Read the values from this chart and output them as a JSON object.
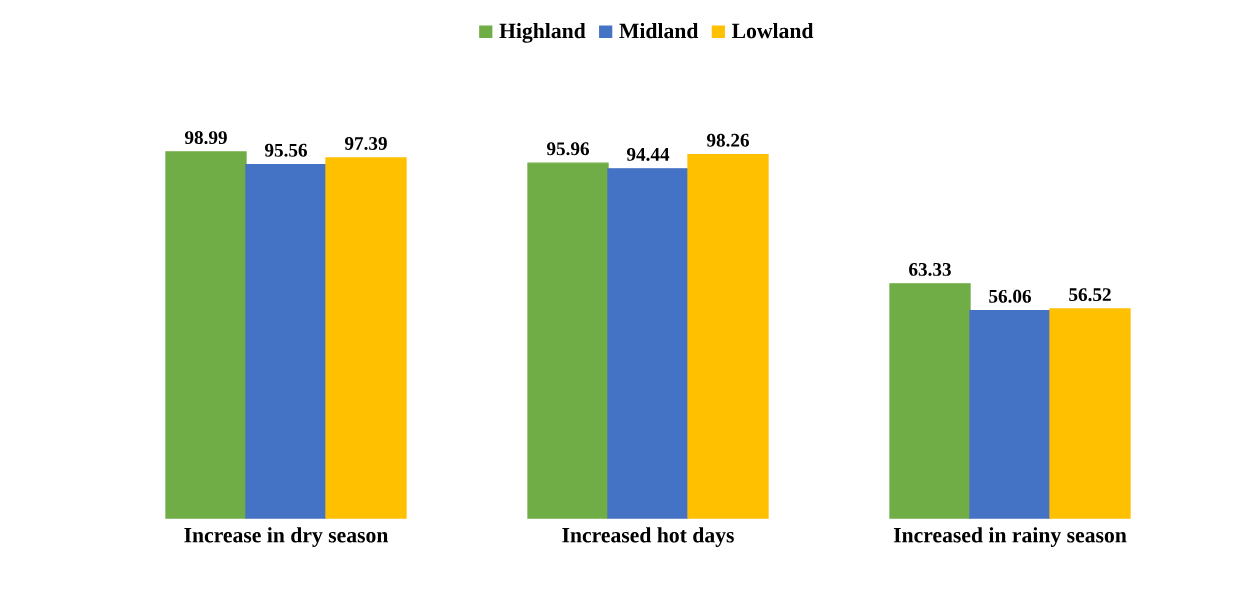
{
  "chart_data": {
    "type": "bar",
    "categories": [
      "Increase in dry season",
      "Increased hot days",
      "Increased in rainy season"
    ],
    "series": [
      {
        "name": "Highland",
        "color": "#70ad47",
        "values": [
          98.99,
          95.96,
          63.33
        ]
      },
      {
        "name": "Midland",
        "color": "#4472c4",
        "values": [
          95.56,
          94.44,
          56.06
        ]
      },
      {
        "name": "Lowland",
        "color": "#ffc000",
        "values": [
          97.39,
          98.26,
          56.52
        ]
      }
    ],
    "data_labels": true,
    "legend": "top"
  }
}
